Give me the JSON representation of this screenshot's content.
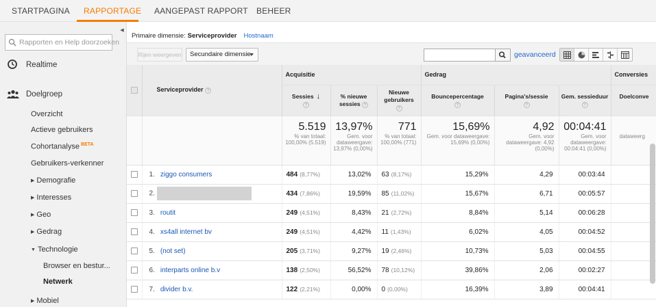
{
  "nav": {
    "tabs": [
      {
        "label": "STARTPAGINA",
        "active": false
      },
      {
        "label": "RAPPORTAGE",
        "active": true
      },
      {
        "label": "AANGEPAST RAPPORT",
        "active": false
      },
      {
        "label": "BEHEER",
        "active": false
      }
    ]
  },
  "sidebar": {
    "search_placeholder": "Rapporten en Help doorzoeken",
    "realtime": "Realtime",
    "audience": "Doelgroep",
    "items": {
      "overzicht": "Overzicht",
      "actieve": "Actieve gebruikers",
      "cohort": "Cohortanalyse",
      "cohort_badge": "BETA",
      "verkenner": "Gebruikers-verkenner",
      "demografie": "Demografie",
      "interesses": "Interesses",
      "geo": "Geo",
      "gedrag": "Gedrag",
      "technologie": "Technologie",
      "browser": "Browser en bestur...",
      "netwerk": "Netwerk",
      "mobiel": "Mobiel"
    }
  },
  "main": {
    "primary_label": "Primaire dimensie:",
    "primary_value": "Serviceprovider",
    "primary_alt": "Hostnaam",
    "plot_rows": "Rijen weergeven",
    "secondary": "Secundaire dimensie",
    "advanced": "geavanceerd"
  },
  "table": {
    "groups": {
      "acquisitie": "Acquisitie",
      "gedrag": "Gedrag",
      "conversies": "Conversies"
    },
    "cols": {
      "provider": "Serviceprovider",
      "sessies": "Sessies",
      "nieuwe_sessies": "% nieuwe sessies",
      "nieuwe_gebruikers": "Nieuwe gebruikers",
      "bounce": "Bouncepercentage",
      "pps": "Pagina's/sessie",
      "duur": "Gem. sessieduur",
      "doel": "Doelconve"
    },
    "totals": {
      "sessies": "5.519",
      "sessies_sub": "% van totaal: 100,00% (5.519)",
      "nieuw": "13,97%",
      "nieuw_sub": "Gem. voor dataweergave: 13,97% (0,00%)",
      "gebruikers": "771",
      "gebruikers_sub": "% van totaal: 100,00% (771)",
      "bounce": "15,69%",
      "bounce_sub": "Gem. voor dataweergave: 15,69% (0,00%)",
      "pps": "4,92",
      "pps_sub": "Gem. voor dataweergave: 4,92 (0,00%)",
      "duur": "00:04:41",
      "duur_sub": "Gem. voor dataweergave: 00:04:41 (0,00%)",
      "doel_sub": "dataweerg"
    },
    "rows": [
      {
        "n": "1.",
        "name": "ziggo consumers",
        "sess": "484",
        "sess_p": "(8,77%)",
        "nieuw": "13,02%",
        "gebr": "63",
        "gebr_p": "(8,17%)",
        "bounce": "15,29%",
        "pps": "4,29",
        "duur": "00:03:44"
      },
      {
        "n": "2.",
        "name": "",
        "sess": "434",
        "sess_p": "(7,86%)",
        "nieuw": "19,59%",
        "gebr": "85",
        "gebr_p": "(11,02%)",
        "bounce": "15,67%",
        "pps": "6,71",
        "duur": "00:05:57"
      },
      {
        "n": "3.",
        "name": "routit",
        "sess": "249",
        "sess_p": "(4,51%)",
        "nieuw": "8,43%",
        "gebr": "21",
        "gebr_p": "(2,72%)",
        "bounce": "8,84%",
        "pps": "5,14",
        "duur": "00:06:28"
      },
      {
        "n": "4.",
        "name": "xs4all internet bv",
        "sess": "249",
        "sess_p": "(4,51%)",
        "nieuw": "4,42%",
        "gebr": "11",
        "gebr_p": "(1,43%)",
        "bounce": "6,02%",
        "pps": "4,05",
        "duur": "00:04:52"
      },
      {
        "n": "5.",
        "name": "(not set)",
        "sess": "205",
        "sess_p": "(3,71%)",
        "nieuw": "9,27%",
        "gebr": "19",
        "gebr_p": "(2,46%)",
        "bounce": "10,73%",
        "pps": "5,03",
        "duur": "00:04:55"
      },
      {
        "n": "6.",
        "name": "interparts online b.v",
        "sess": "138",
        "sess_p": "(2,50%)",
        "nieuw": "56,52%",
        "gebr": "78",
        "gebr_p": "(10,12%)",
        "bounce": "39,86%",
        "pps": "2,06",
        "duur": "00:02:27"
      },
      {
        "n": "7.",
        "name": "divider b.v.",
        "sess": "122",
        "sess_p": "(2,21%)",
        "nieuw": "0,00%",
        "gebr": "0",
        "gebr_p": "(0,00%)",
        "bounce": "16,39%",
        "pps": "3,89",
        "duur": "00:04:41"
      }
    ]
  }
}
